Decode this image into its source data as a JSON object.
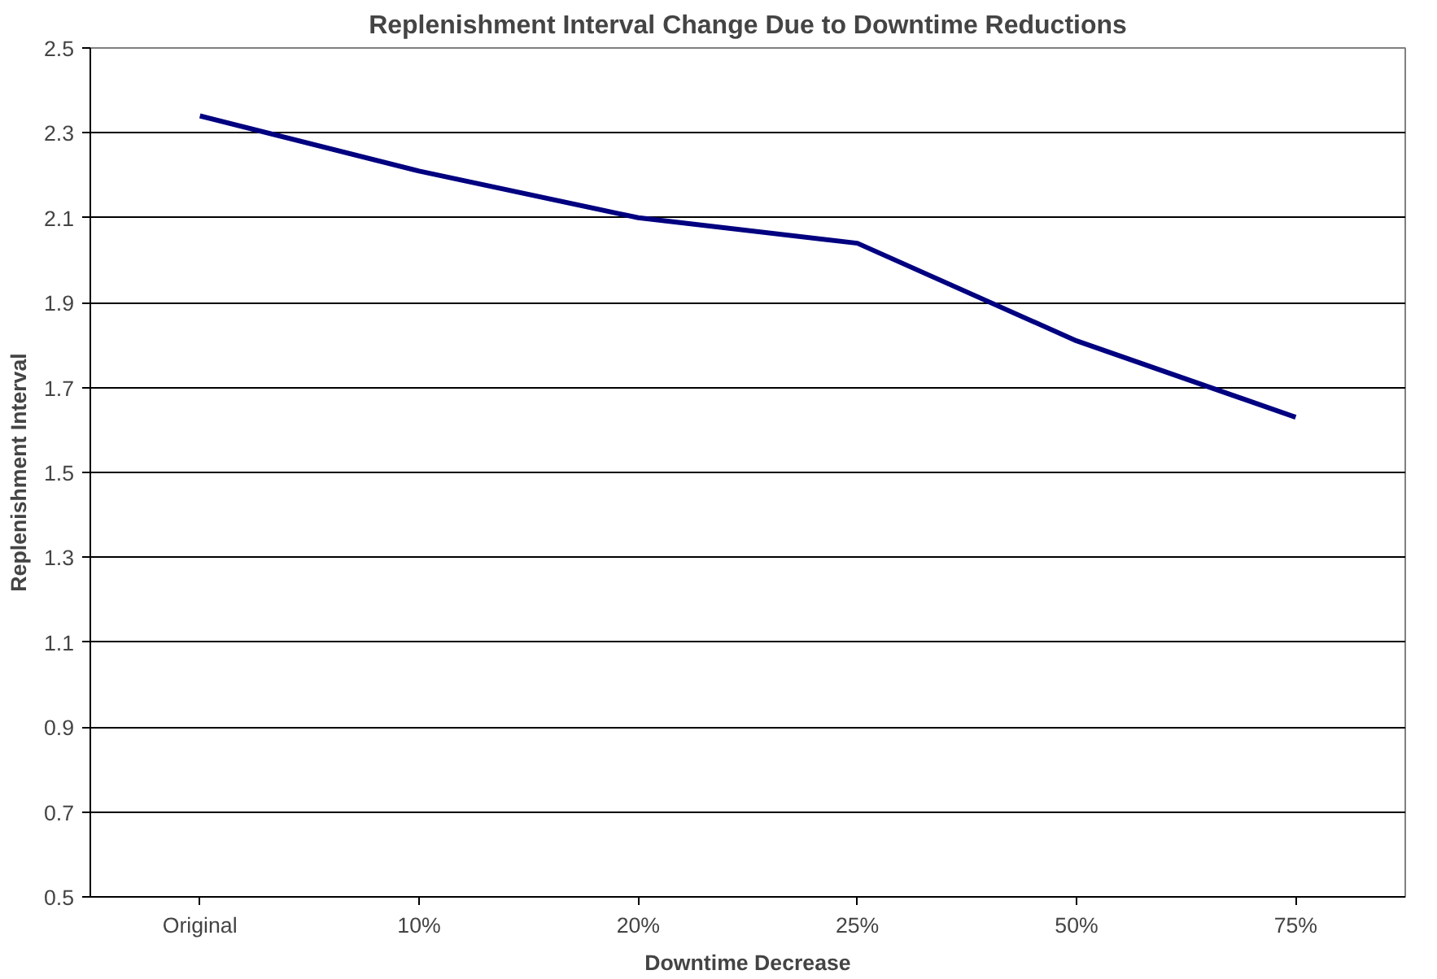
{
  "chart_data": {
    "type": "line",
    "title": "Replenishment Interval Change Due to Downtime Reductions",
    "xlabel": "Downtime Decrease",
    "ylabel": "Replenishment Interval",
    "categories": [
      "Original",
      "10%",
      "20%",
      "25%",
      "50%",
      "75%"
    ],
    "series": [
      {
        "color": "#000080",
        "values": [
          2.34,
          2.21,
          2.1,
          2.04,
          1.81,
          1.63
        ]
      }
    ],
    "ylim": [
      0.5,
      2.5
    ],
    "yticks": [
      0.5,
      0.7,
      0.9,
      1.1,
      1.3,
      1.5,
      1.7,
      1.9,
      2.1,
      2.3,
      2.5
    ],
    "grid": "y",
    "marker": "none",
    "line_style": "solid"
  }
}
